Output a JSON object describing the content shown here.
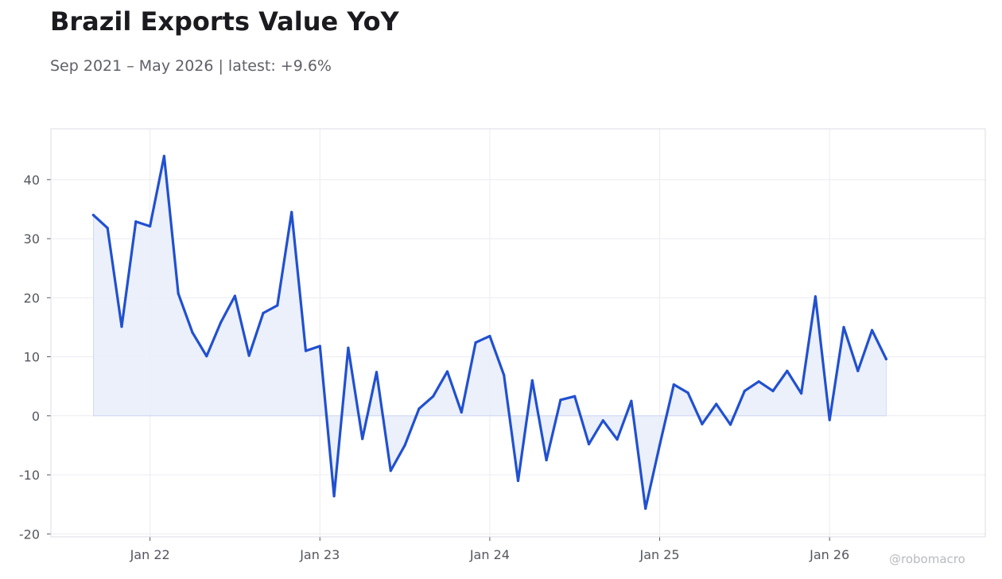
{
  "header": {
    "title": "Brazil Exports Value YoY",
    "subtitle": "Sep 2021 – May 2026 | latest: +9.6%"
  },
  "watermark": "@robomacro",
  "colors": {
    "line": "#2150d0",
    "fill": "#e9eefa",
    "grid": "#ececf2",
    "frame": "#dcdde4",
    "text": "#55565e"
  },
  "chart_data": {
    "type": "area",
    "title": "Brazil Exports Value YoY",
    "subtitle": "Sep 2021 – May 2026 | latest: +9.6%",
    "xlabel": "",
    "ylabel": "",
    "ylim": [
      -20.5,
      48.6
    ],
    "y_ticks": [
      -20,
      -10,
      0,
      10,
      20,
      30,
      40
    ],
    "x_ticks": [
      {
        "date": "2022-01",
        "label": "Jan 22"
      },
      {
        "date": "2023-01",
        "label": "Jan 23"
      },
      {
        "date": "2024-01",
        "label": "Jan 24"
      },
      {
        "date": "2025-01",
        "label": "Jan 25"
      },
      {
        "date": "2026-01",
        "label": "Jan 26"
      }
    ],
    "x_range": [
      "2021-06",
      "2026-12"
    ],
    "grid": true,
    "legend": "none",
    "series": [
      {
        "x": [
          "2021-09",
          "2021-10",
          "2021-11",
          "2021-12",
          "2022-01",
          "2022-02",
          "2022-03",
          "2022-04",
          "2022-05",
          "2022-06",
          "2022-07",
          "2022-08",
          "2022-09",
          "2022-10",
          "2022-11",
          "2022-12",
          "2023-01",
          "2023-02",
          "2023-03",
          "2023-04",
          "2023-05",
          "2023-06",
          "2023-07",
          "2023-08",
          "2023-09",
          "2023-10",
          "2023-11",
          "2023-12",
          "2024-01",
          "2024-02",
          "2024-03",
          "2024-04",
          "2024-05",
          "2024-06",
          "2024-07",
          "2024-08",
          "2024-09",
          "2024-10",
          "2024-11",
          "2024-12",
          "2025-01",
          "2025-02",
          "2025-03",
          "2025-04",
          "2025-05",
          "2025-06",
          "2025-07",
          "2025-08",
          "2025-09",
          "2025-10",
          "2025-11",
          "2025-12",
          "2026-01",
          "2026-02",
          "2026-03",
          "2026-04",
          "2026-05"
        ],
        "values": [
          34.0,
          31.8,
          15.1,
          32.9,
          32.1,
          44.0,
          20.7,
          14.1,
          10.1,
          15.8,
          20.3,
          10.2,
          17.4,
          18.7,
          34.5,
          11.0,
          11.8,
          -13.6,
          11.5,
          -3.9,
          7.4,
          -9.3,
          -5.0,
          1.2,
          3.3,
          7.5,
          0.6,
          12.4,
          13.5,
          6.9,
          -11.0,
          6.0,
          -7.5,
          2.7,
          3.3,
          -4.8,
          -0.8,
          -4.0,
          2.5,
          -15.7,
          -5.0,
          5.3,
          3.9,
          -1.4,
          2.0,
          -1.5,
          4.2,
          5.8,
          4.2,
          7.6,
          3.8,
          20.2,
          -0.7,
          15.0,
          7.6,
          14.5,
          9.6
        ]
      }
    ]
  }
}
